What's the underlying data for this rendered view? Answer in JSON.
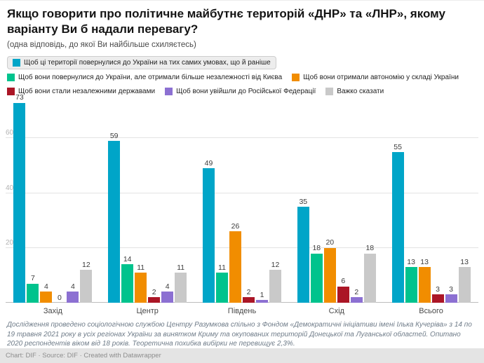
{
  "header": {
    "title": "Якщо говорити про політичне майбутнє територій «ДНР» та «ЛНР», якому варіанту Ви б надали перевагу?",
    "subtitle": "(одна відповідь, до якої Ви найбільше схиляєтесь)"
  },
  "chart_data": {
    "type": "bar",
    "grouped": true,
    "categories": [
      "Захід",
      "Центр",
      "Південь",
      "Схід",
      "Всього"
    ],
    "series": [
      {
        "name": "Щоб ці території повернулися до України на тих самих умовах, що й раніше",
        "color": "#00a5c8",
        "values": [
          73,
          59,
          49,
          35,
          55
        ],
        "highlighted": true
      },
      {
        "name": "Щоб вони повернулися до України, але отримали більше незалежності від Києва",
        "color": "#00c38d",
        "values": [
          7,
          14,
          11,
          18,
          13
        ]
      },
      {
        "name": "Щоб вони отримали автономію у складі України",
        "color": "#f18d00",
        "values": [
          4,
          11,
          26,
          20,
          13
        ]
      },
      {
        "name": "Щоб вони стали незалежними державами",
        "color": "#ab1626",
        "values": [
          0,
          2,
          2,
          6,
          3
        ]
      },
      {
        "name": "Щоб вони увійшли до Російської Федерації",
        "color": "#8c70d2",
        "values": [
          4,
          4,
          1,
          2,
          3
        ]
      },
      {
        "name": "Важко сказати",
        "color": "#c9c9c9",
        "values": [
          12,
          11,
          12,
          18,
          13
        ]
      }
    ],
    "yticks": [
      0,
      20,
      40,
      60
    ],
    "ylim": [
      0,
      77
    ],
    "grid": "horizontal",
    "legend_position": "top",
    "value_labels": true
  },
  "notes": "Дослідження проведено соціологічною службою Центру Разумкова спільно з Фондом «Демократичні ініціативи імені Ілька Кучеріва» з 14 по 19 травня 2021 року в усіх регіонах України за винятком Криму та окупованих територій Донецької та Луганської областей. Опитано 2020 респондентів віком від 18 років. Теоретична похибка вибірки не перевищує 2,3%.",
  "footer": {
    "attribution": "Chart: DIF · Source: DIF · Created with Datawrapper"
  }
}
